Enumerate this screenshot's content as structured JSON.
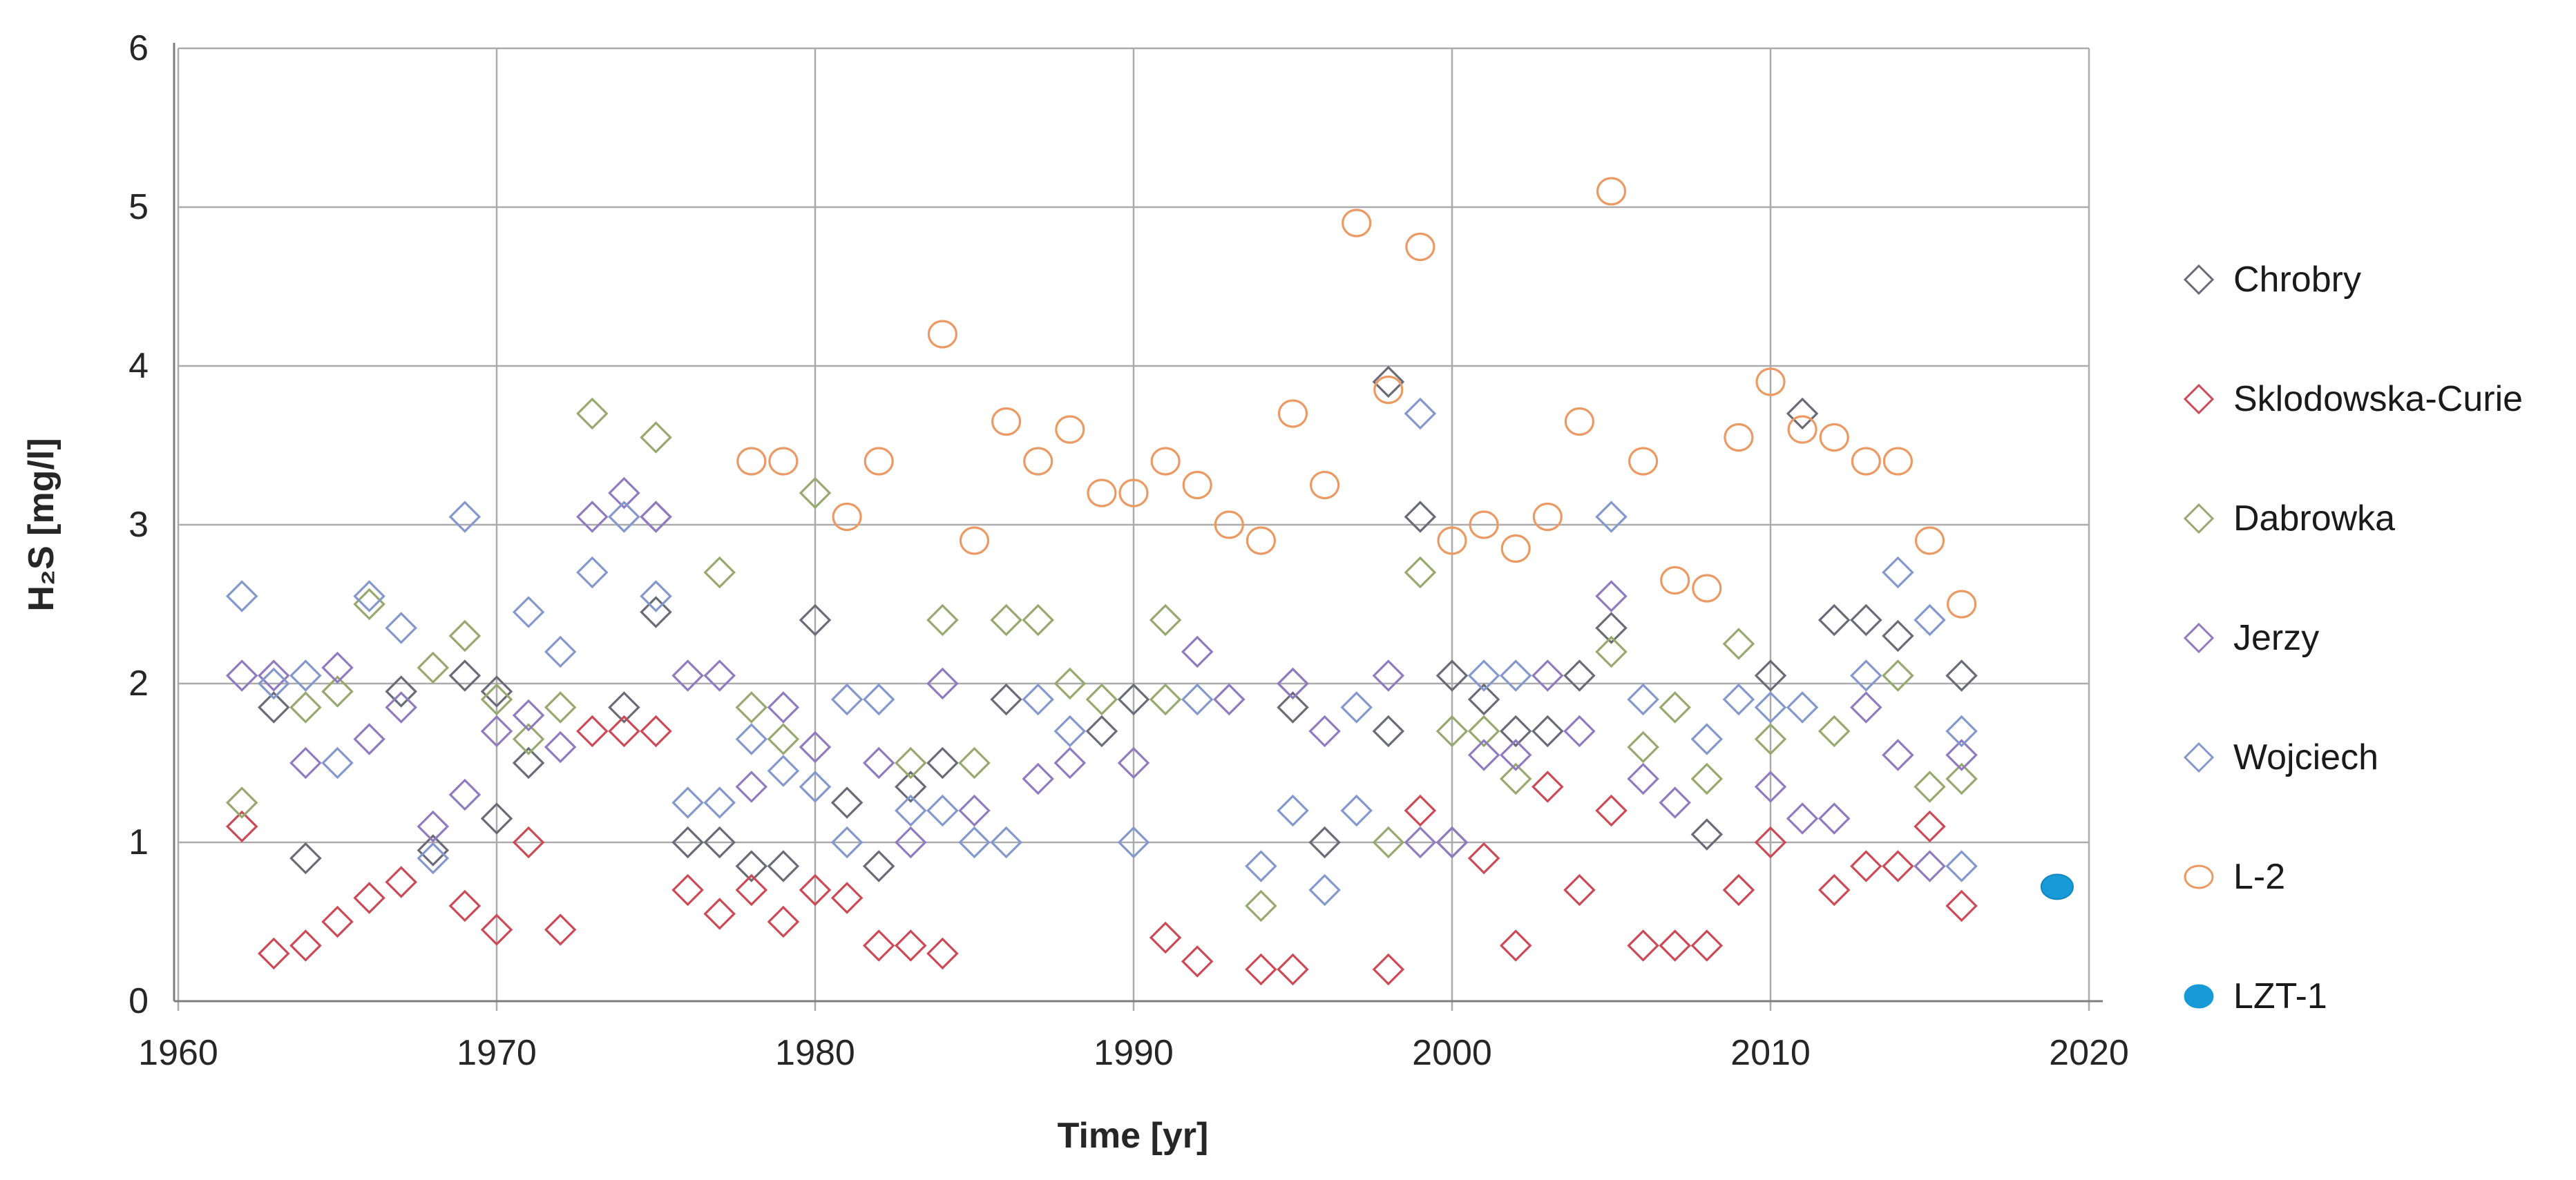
{
  "chart_data": {
    "type": "scatter",
    "title": "",
    "xlabel": "Time [yr]",
    "ylabel": "H₂S [mg/l]",
    "xlim": [
      1960,
      2020
    ],
    "ylim": [
      0,
      6
    ],
    "xticks": [
      1960,
      1970,
      1980,
      1990,
      2000,
      2010,
      2020
    ],
    "yticks": [
      0,
      1,
      2,
      3,
      4,
      5,
      6
    ],
    "grid": true,
    "grid_color": "#ababab",
    "axis_color": "#7f7f7f",
    "legend_position": "right",
    "series": [
      {
        "name": "Chrobry",
        "marker": "diamond",
        "color": "#6b6b78",
        "points": [
          [
            1963,
            1.85
          ],
          [
            1964,
            0.9
          ],
          [
            1967,
            1.95
          ],
          [
            1968,
            0.95
          ],
          [
            1969,
            2.05
          ],
          [
            1970,
            1.95
          ],
          [
            1970,
            1.15
          ],
          [
            1971,
            1.5
          ],
          [
            1974,
            1.85
          ],
          [
            1975,
            2.45
          ],
          [
            1976,
            1.0
          ],
          [
            1977,
            1.0
          ],
          [
            1978,
            0.85
          ],
          [
            1979,
            0.85
          ],
          [
            1980,
            2.4
          ],
          [
            1981,
            1.25
          ],
          [
            1982,
            0.85
          ],
          [
            1983,
            1.35
          ],
          [
            1984,
            1.5
          ],
          [
            1986,
            1.9
          ],
          [
            1989,
            1.7
          ],
          [
            1990,
            1.9
          ],
          [
            1995,
            1.85
          ],
          [
            1996,
            1.0
          ],
          [
            1998,
            3.9
          ],
          [
            1998,
            1.7
          ],
          [
            1999,
            3.05
          ],
          [
            2000,
            2.05
          ],
          [
            2000,
            1.0
          ],
          [
            2001,
            1.9
          ],
          [
            2002,
            1.7
          ],
          [
            2003,
            1.7
          ],
          [
            2004,
            2.05
          ],
          [
            2005,
            2.35
          ],
          [
            2008,
            1.05
          ],
          [
            2010,
            2.05
          ],
          [
            2011,
            3.7
          ],
          [
            2012,
            2.4
          ],
          [
            2013,
            2.4
          ],
          [
            2014,
            2.3
          ],
          [
            2016,
            2.05
          ]
        ]
      },
      {
        "name": "Sklodowska-Curie",
        "marker": "diamond",
        "color": "#cb4a55",
        "points": [
          [
            1962,
            1.1
          ],
          [
            1963,
            0.3
          ],
          [
            1964,
            0.35
          ],
          [
            1965,
            0.5
          ],
          [
            1966,
            0.65
          ],
          [
            1967,
            0.75
          ],
          [
            1969,
            0.6
          ],
          [
            1970,
            0.45
          ],
          [
            1971,
            1.0
          ],
          [
            1972,
            0.45
          ],
          [
            1973,
            1.7
          ],
          [
            1974,
            1.7
          ],
          [
            1975,
            1.7
          ],
          [
            1975,
            3.05
          ],
          [
            1976,
            0.7
          ],
          [
            1977,
            0.55
          ],
          [
            1978,
            0.7
          ],
          [
            1979,
            0.5
          ],
          [
            1980,
            0.7
          ],
          [
            1981,
            0.65
          ],
          [
            1982,
            0.35
          ],
          [
            1983,
            0.35
          ],
          [
            1984,
            0.3
          ],
          [
            1991,
            0.4
          ],
          [
            1992,
            0.25
          ],
          [
            1994,
            0.2
          ],
          [
            1995,
            0.2
          ],
          [
            1998,
            0.2
          ],
          [
            1999,
            1.2
          ],
          [
            2001,
            0.9
          ],
          [
            2002,
            0.35
          ],
          [
            2003,
            1.35
          ],
          [
            2004,
            0.7
          ],
          [
            2005,
            1.2
          ],
          [
            2006,
            0.35
          ],
          [
            2007,
            0.35
          ],
          [
            2008,
            0.35
          ],
          [
            2009,
            0.7
          ],
          [
            2010,
            1.0
          ],
          [
            2012,
            0.7
          ],
          [
            2013,
            0.85
          ],
          [
            2014,
            0.85
          ],
          [
            2015,
            1.1
          ],
          [
            2016,
            0.6
          ]
        ]
      },
      {
        "name": "Dabrowka",
        "marker": "diamond",
        "color": "#97a96e",
        "points": [
          [
            1962,
            1.25
          ],
          [
            1964,
            1.85
          ],
          [
            1965,
            1.95
          ],
          [
            1966,
            2.5
          ],
          [
            1968,
            2.1
          ],
          [
            1969,
            2.3
          ],
          [
            1970,
            1.9
          ],
          [
            1971,
            1.65
          ],
          [
            1972,
            1.85
          ],
          [
            1973,
            3.7
          ],
          [
            1975,
            3.55
          ],
          [
            1977,
            2.7
          ],
          [
            1978,
            1.85
          ],
          [
            1979,
            1.65
          ],
          [
            1980,
            3.2
          ],
          [
            1983,
            1.5
          ],
          [
            1984,
            2.4
          ],
          [
            1985,
            1.5
          ],
          [
            1986,
            2.4
          ],
          [
            1987,
            2.4
          ],
          [
            1988,
            2.0
          ],
          [
            1989,
            1.9
          ],
          [
            1991,
            2.4
          ],
          [
            1991,
            1.9
          ],
          [
            1994,
            0.6
          ],
          [
            1995,
            2.0
          ],
          [
            1998,
            1.0
          ],
          [
            1999,
            2.7
          ],
          [
            2000,
            1.7
          ],
          [
            2001,
            1.7
          ],
          [
            2002,
            1.4
          ],
          [
            2005,
            2.2
          ],
          [
            2006,
            1.6
          ],
          [
            2007,
            1.85
          ],
          [
            2008,
            1.4
          ],
          [
            2009,
            2.25
          ],
          [
            2010,
            1.65
          ],
          [
            2012,
            1.7
          ],
          [
            2014,
            2.05
          ],
          [
            2015,
            1.35
          ],
          [
            2016,
            1.4
          ]
        ]
      },
      {
        "name": "Jerzy",
        "marker": "diamond",
        "color": "#8f7bbf",
        "points": [
          [
            1962,
            2.05
          ],
          [
            1963,
            2.05
          ],
          [
            1964,
            1.5
          ],
          [
            1965,
            2.1
          ],
          [
            1966,
            1.65
          ],
          [
            1967,
            1.85
          ],
          [
            1968,
            1.1
          ],
          [
            1969,
            1.3
          ],
          [
            1970,
            1.7
          ],
          [
            1971,
            1.8
          ],
          [
            1972,
            1.6
          ],
          [
            1973,
            3.05
          ],
          [
            1974,
            3.2
          ],
          [
            1975,
            3.05
          ],
          [
            1976,
            2.05
          ],
          [
            1977,
            2.05
          ],
          [
            1978,
            1.35
          ],
          [
            1979,
            1.85
          ],
          [
            1980,
            1.6
          ],
          [
            1982,
            1.5
          ],
          [
            1983,
            1.0
          ],
          [
            1984,
            2.0
          ],
          [
            1985,
            1.2
          ],
          [
            1987,
            1.4
          ],
          [
            1988,
            1.5
          ],
          [
            1990,
            1.5
          ],
          [
            1992,
            2.2
          ],
          [
            1993,
            1.9
          ],
          [
            1995,
            2.0
          ],
          [
            1996,
            1.7
          ],
          [
            1998,
            2.05
          ],
          [
            1999,
            1.0
          ],
          [
            2000,
            1.0
          ],
          [
            2001,
            1.55
          ],
          [
            2002,
            1.55
          ],
          [
            2003,
            2.05
          ],
          [
            2004,
            1.7
          ],
          [
            2005,
            2.55
          ],
          [
            2006,
            1.4
          ],
          [
            2007,
            1.25
          ],
          [
            2010,
            1.35
          ],
          [
            2011,
            1.15
          ],
          [
            2012,
            1.15
          ],
          [
            2013,
            1.85
          ],
          [
            2014,
            1.55
          ],
          [
            2015,
            0.85
          ],
          [
            2016,
            1.55
          ]
        ]
      },
      {
        "name": "Wojciech",
        "marker": "diamond",
        "color": "#8398cc",
        "points": [
          [
            1962,
            2.55
          ],
          [
            1963,
            2.0
          ],
          [
            1964,
            2.05
          ],
          [
            1965,
            1.5
          ],
          [
            1966,
            2.55
          ],
          [
            1967,
            2.35
          ],
          [
            1968,
            0.9
          ],
          [
            1969,
            3.05
          ],
          [
            1971,
            2.45
          ],
          [
            1972,
            2.2
          ],
          [
            1973,
            2.7
          ],
          [
            1974,
            3.05
          ],
          [
            1975,
            2.55
          ],
          [
            1976,
            1.25
          ],
          [
            1977,
            1.25
          ],
          [
            1978,
            1.65
          ],
          [
            1979,
            1.45
          ],
          [
            1980,
            1.35
          ],
          [
            1981,
            1.9
          ],
          [
            1981,
            1.0
          ],
          [
            1982,
            1.9
          ],
          [
            1983,
            1.2
          ],
          [
            1984,
            1.2
          ],
          [
            1985,
            1.0
          ],
          [
            1986,
            1.0
          ],
          [
            1987,
            1.9
          ],
          [
            1988,
            1.7
          ],
          [
            1990,
            1.0
          ],
          [
            1992,
            1.9
          ],
          [
            1994,
            0.85
          ],
          [
            1995,
            1.2
          ],
          [
            1996,
            0.7
          ],
          [
            1997,
            1.2
          ],
          [
            1997,
            1.85
          ],
          [
            1999,
            3.7
          ],
          [
            2001,
            2.05
          ],
          [
            2002,
            2.05
          ],
          [
            2005,
            3.05
          ],
          [
            2006,
            1.9
          ],
          [
            2008,
            1.65
          ],
          [
            2009,
            1.9
          ],
          [
            2010,
            1.85
          ],
          [
            2011,
            1.85
          ],
          [
            2013,
            2.05
          ],
          [
            2014,
            2.7
          ],
          [
            2015,
            2.4
          ],
          [
            2016,
            0.85
          ],
          [
            2016,
            1.7
          ]
        ]
      },
      {
        "name": "L-2",
        "marker": "circle",
        "color": "#eb9a64",
        "points": [
          [
            1978,
            3.4
          ],
          [
            1979,
            3.4
          ],
          [
            1981,
            3.05
          ],
          [
            1982,
            3.4
          ],
          [
            1984,
            4.2
          ],
          [
            1985,
            2.9
          ],
          [
            1986,
            3.65
          ],
          [
            1987,
            3.4
          ],
          [
            1988,
            3.6
          ],
          [
            1989,
            3.2
          ],
          [
            1990,
            3.2
          ],
          [
            1991,
            3.4
          ],
          [
            1992,
            3.25
          ],
          [
            1993,
            3.0
          ],
          [
            1994,
            2.9
          ],
          [
            1995,
            3.7
          ],
          [
            1996,
            3.25
          ],
          [
            1997,
            4.9
          ],
          [
            1998,
            3.85
          ],
          [
            1999,
            4.75
          ],
          [
            2000,
            2.9
          ],
          [
            2001,
            3.0
          ],
          [
            2002,
            2.85
          ],
          [
            2003,
            3.05
          ],
          [
            2004,
            3.65
          ],
          [
            2005,
            5.1
          ],
          [
            2006,
            3.4
          ],
          [
            2007,
            2.65
          ],
          [
            2008,
            2.6
          ],
          [
            2009,
            3.55
          ],
          [
            2010,
            3.9
          ],
          [
            2011,
            3.6
          ],
          [
            2012,
            3.55
          ],
          [
            2013,
            3.4
          ],
          [
            2014,
            3.4
          ],
          [
            2015,
            2.9
          ],
          [
            2016,
            2.5
          ]
        ]
      },
      {
        "name": "LZT-1",
        "marker": "filled-circle",
        "color": "#179ad6",
        "points": [
          [
            2019,
            0.72
          ]
        ]
      }
    ]
  },
  "layout_labels": {
    "x_axis_title": "Time [yr]",
    "y_axis_title": "H₂S [mg/l]"
  }
}
